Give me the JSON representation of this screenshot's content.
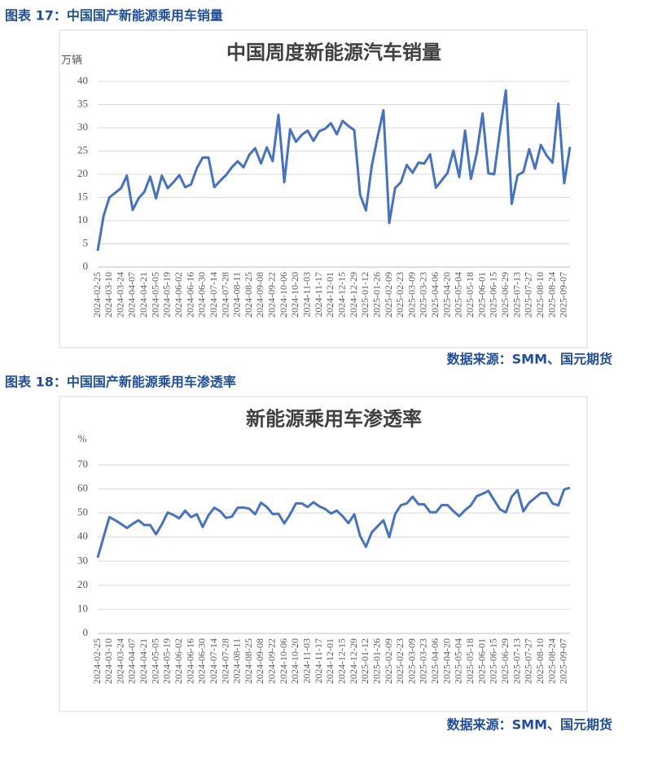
{
  "chart_data": [
    {
      "type": "line",
      "caption": "图表 17：中国国产新能源乘用车销量",
      "title": "中国周度新能源汽车销量",
      "y_label": "万辆",
      "source": "数据来源：SMM、国元期货",
      "color": "#4472c4",
      "grid": true,
      "ylim": [
        0,
        40
      ],
      "yticks": [
        0,
        5,
        10,
        15,
        20,
        25,
        30,
        35,
        40
      ],
      "categories": [
        "2024-02-25",
        null,
        "2024-03-10",
        null,
        "2024-03-24",
        null,
        "2024-04-07",
        null,
        "2024-04-21",
        null,
        "2024-05-05",
        null,
        "2024-05-19",
        null,
        "2024-06-02",
        null,
        "2024-06-16",
        null,
        "2024-06-30",
        null,
        "2024-07-14",
        null,
        "2024-07-28",
        null,
        "2024-08-11",
        null,
        "2024-08-25",
        null,
        "2024-09-08",
        null,
        "2024-09-22",
        null,
        "2024-10-06",
        null,
        "2024-10-20",
        null,
        "2024-11-03",
        null,
        "2024-11-17",
        null,
        "2024-12-01",
        null,
        "2024-12-15",
        null,
        "2024-12-29",
        null,
        "2025-01-12",
        null,
        "2025-01-26",
        null,
        "2025-02-09",
        null,
        "2025-02-23",
        null,
        "2025-03-09",
        null,
        "2025-03-23",
        null,
        "2025-04-06",
        null,
        "2025-04-20",
        null,
        "2025-05-04",
        null,
        "2025-05-18",
        null,
        "2025-06-01",
        null,
        "2025-06-15",
        null,
        "2025-06-29",
        null,
        "2025-07-13",
        null,
        "2025-07-27",
        null,
        "2025-08-10",
        null,
        "2025-08-24",
        null,
        "2025-09-07",
        null
      ],
      "values": [
        3.5,
        11,
        15,
        16,
        17,
        19.7,
        12.3,
        14.8,
        16.2,
        19.5,
        14.8,
        19.7,
        17,
        18.3,
        19.8,
        17.2,
        17.8,
        21.3,
        23.6,
        23.6,
        17.2,
        18.6,
        19.8,
        21.5,
        22.8,
        21.5,
        24.2,
        25.6,
        22.3,
        25.8,
        22.8,
        32.8,
        18.3,
        29.7,
        27,
        28.5,
        29.4,
        27.2,
        29.3,
        29.8,
        31,
        28.6,
        31.5,
        30.4,
        29.5,
        15.6,
        12.2,
        21.8,
        28,
        33.8,
        9.5,
        17,
        18.3,
        22,
        20.3,
        22.5,
        22.3,
        24.3,
        17.1,
        18.7,
        20.3,
        25.1,
        19.4,
        29.4,
        19,
        24.5,
        33.1,
        20.2,
        20,
        29.5,
        38.1,
        13.6,
        19.8,
        20.5,
        25.4,
        21.2,
        26.3,
        24,
        22.5,
        35.2,
        18.1,
        25.9
      ]
    },
    {
      "type": "line",
      "caption": "图表 18：中国国产新能源乘用车渗透率",
      "title": "新能源乘用车渗透率",
      "y_label": "%",
      "source": "数据来源：SMM、国元期货",
      "color": "#4472c4",
      "grid": true,
      "ylim": [
        0,
        70
      ],
      "yticks": [
        0,
        10,
        20,
        30,
        40,
        50,
        60,
        70
      ],
      "categories": [
        "2024-02-25",
        null,
        "2024-03-10",
        null,
        "2024-03-24",
        null,
        "2024-04-07",
        null,
        "2024-04-21",
        null,
        "2024-05-05",
        null,
        "2024-05-19",
        null,
        "2024-06-02",
        null,
        "2024-06-16",
        null,
        "2024-06-30",
        null,
        "2024-07-14",
        null,
        "2024-07-28",
        null,
        "2024-08-11",
        null,
        "2024-08-25",
        null,
        "2024-09-08",
        null,
        "2024-09-22",
        null,
        "2024-10-06",
        null,
        "2024-10-20",
        null,
        "2024-11-03",
        null,
        "2024-11-17",
        null,
        "2024-12-01",
        null,
        "2024-12-15",
        null,
        "2024-12-29",
        null,
        "2025-01-12",
        null,
        "2025-01-26",
        null,
        "2025-02-09",
        null,
        "2025-02-23",
        null,
        "2025-03-09",
        null,
        "2025-03-23",
        null,
        "2025-04-06",
        null,
        "2025-04-20",
        null,
        "2025-05-04",
        null,
        "2025-05-18",
        null,
        "2025-06-01",
        null,
        "2025-06-15",
        null,
        "2025-06-29",
        null,
        "2025-07-13",
        null,
        "2025-07-27",
        null,
        "2025-08-10",
        null,
        "2025-08-24",
        null,
        "2025-09-07",
        null
      ],
      "values": [
        31.5,
        40,
        48.3,
        47,
        45.5,
        43.8,
        45.5,
        47,
        45,
        45,
        41.2,
        45.3,
        50.2,
        49.2,
        47.8,
        51,
        48.3,
        49.5,
        44.2,
        49.1,
        52.2,
        50.8,
        48,
        48.5,
        52.2,
        52.3,
        51.8,
        49.5,
        54.3,
        52.5,
        49.6,
        49.7,
        45.7,
        49.5,
        54,
        54,
        52.5,
        54.5,
        52.8,
        51.7,
        49.8,
        51,
        48.7,
        45.8,
        49.5,
        40.5,
        36,
        42,
        44.5,
        47,
        40,
        49.5,
        53.3,
        54,
        56.8,
        53.7,
        53.6,
        50.4,
        50.3,
        53.3,
        53.3,
        50.8,
        48.7,
        51.2,
        53.2,
        57,
        58,
        59.2,
        55.3,
        51.5,
        50.3,
        56.8,
        59.5,
        50.7,
        54.3,
        56.3,
        58.3,
        58.3,
        54,
        53.2,
        59.8,
        60.5
      ]
    }
  ]
}
